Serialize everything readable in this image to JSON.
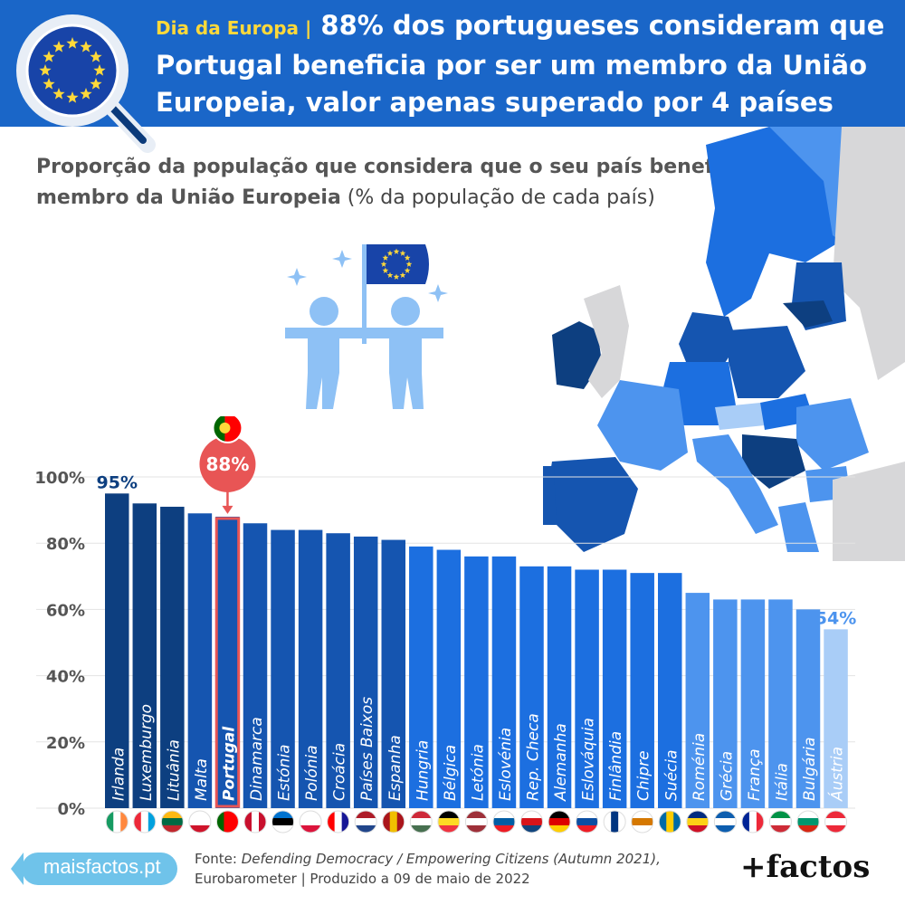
{
  "header": {
    "kicker": "Dia da Europa |",
    "title": "88% dos portugueses consideram que Portugal beneficia por ser um membro da União Europeia, valor apenas superado por 4 países"
  },
  "subtitle": {
    "bold": "Proporção da população que considera que o seu país beneficia por ser um membro da União Europeia",
    "light": " (% da população de cada país)"
  },
  "chart_data": {
    "type": "bar",
    "categories": [
      "Irlanda",
      "Luxemburgo",
      "Lituânia",
      "Malta",
      "Portugal",
      "Dinamarca",
      "Estónia",
      "Polónia",
      "Croácia",
      "Países Baixos",
      "Espanha",
      "Hungria",
      "Bélgica",
      "Letónia",
      "Eslovénia",
      "Rep. Checa",
      "Alemanha",
      "Eslováquia",
      "Finlândia",
      "Chipre",
      "Suécia",
      "Roménia",
      "Grécia",
      "França",
      "Itália",
      "Bulgária",
      "Áustria"
    ],
    "values": [
      95,
      92,
      91,
      89,
      88,
      86,
      84,
      84,
      83,
      82,
      81,
      79,
      78,
      76,
      76,
      73,
      73,
      72,
      72,
      71,
      71,
      65,
      63,
      63,
      63,
      60,
      54
    ],
    "ylim": [
      0,
      100
    ],
    "y_ticks": [
      "0%",
      "20%",
      "40%",
      "60%",
      "80%",
      "100%"
    ],
    "highlight": "Portugal",
    "highlight_label": "88%",
    "first_label": "95%",
    "last_label": "54%",
    "grid": true,
    "colors": [
      "#0d3f80",
      "#0d3f80",
      "#0d3f80",
      "#1555b0",
      "#1555b0",
      "#1555b0",
      "#1555b0",
      "#1555b0",
      "#1555b0",
      "#1555b0",
      "#1555b0",
      "#1c6fe0",
      "#1c6fe0",
      "#1c6fe0",
      "#1c6fe0",
      "#1c6fe0",
      "#1c6fe0",
      "#1c6fe0",
      "#1c6fe0",
      "#1c6fe0",
      "#1c6fe0",
      "#4d94ee",
      "#4d94ee",
      "#4d94ee",
      "#4d94ee",
      "#4d94ee",
      "#a9cdf7"
    ]
  },
  "footer": {
    "site": "maisfactos.pt",
    "source_prefix": "Fonte: ",
    "source_title": "Defending Democracy / Empowering Citizens (Autumn 2021),",
    "source_rest": "Eurobarometer | Produzido a 09 de maio de 2022",
    "logo": "+factos"
  }
}
